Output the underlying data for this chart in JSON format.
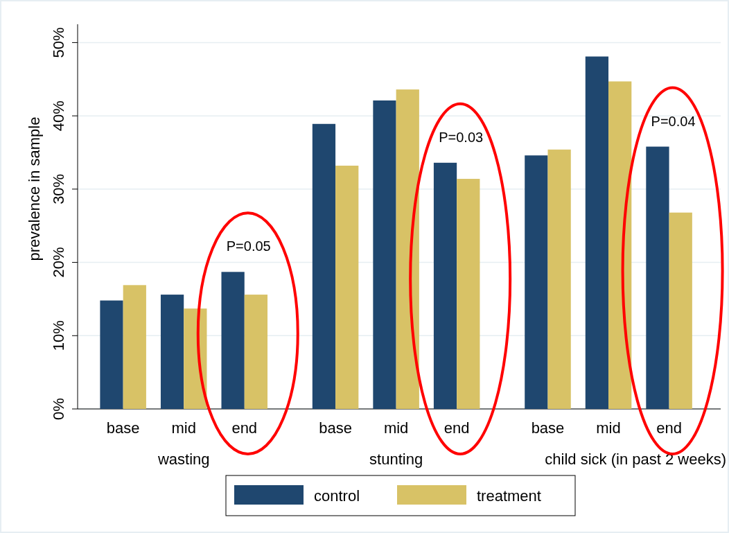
{
  "chart_data": {
    "type": "bar",
    "ylabel": "prevalence in sample",
    "categories": [
      "base",
      "mid",
      "end",
      "base",
      "mid",
      "end",
      "base",
      "mid",
      "end"
    ],
    "series": [
      {
        "name": "control",
        "color": "#1f476f",
        "values": [
          14.8,
          15.6,
          18.7,
          38.9,
          42.1,
          33.6,
          34.6,
          48.1,
          35.8
        ]
      },
      {
        "name": "treatment",
        "color": "#d8c266",
        "values": [
          16.9,
          13.7,
          15.6,
          33.2,
          43.6,
          31.4,
          35.4,
          44.7,
          26.8
        ]
      }
    ],
    "ylim": [
      0,
      52.5
    ],
    "yticks": [
      {
        "value": 0,
        "label": "0%"
      },
      {
        "value": 10,
        "label": "10%"
      },
      {
        "value": 20,
        "label": "20%"
      },
      {
        "value": 30,
        "label": "30%"
      },
      {
        "value": 40,
        "label": "40%"
      },
      {
        "value": 50,
        "label": "50%"
      }
    ],
    "grid": "y",
    "legend": "bottom",
    "annotations": [
      "wasting",
      "stunting",
      "child sick (in past 2 weeks)",
      "P=0.05",
      "P=0.03",
      "P=0.04"
    ]
  }
}
